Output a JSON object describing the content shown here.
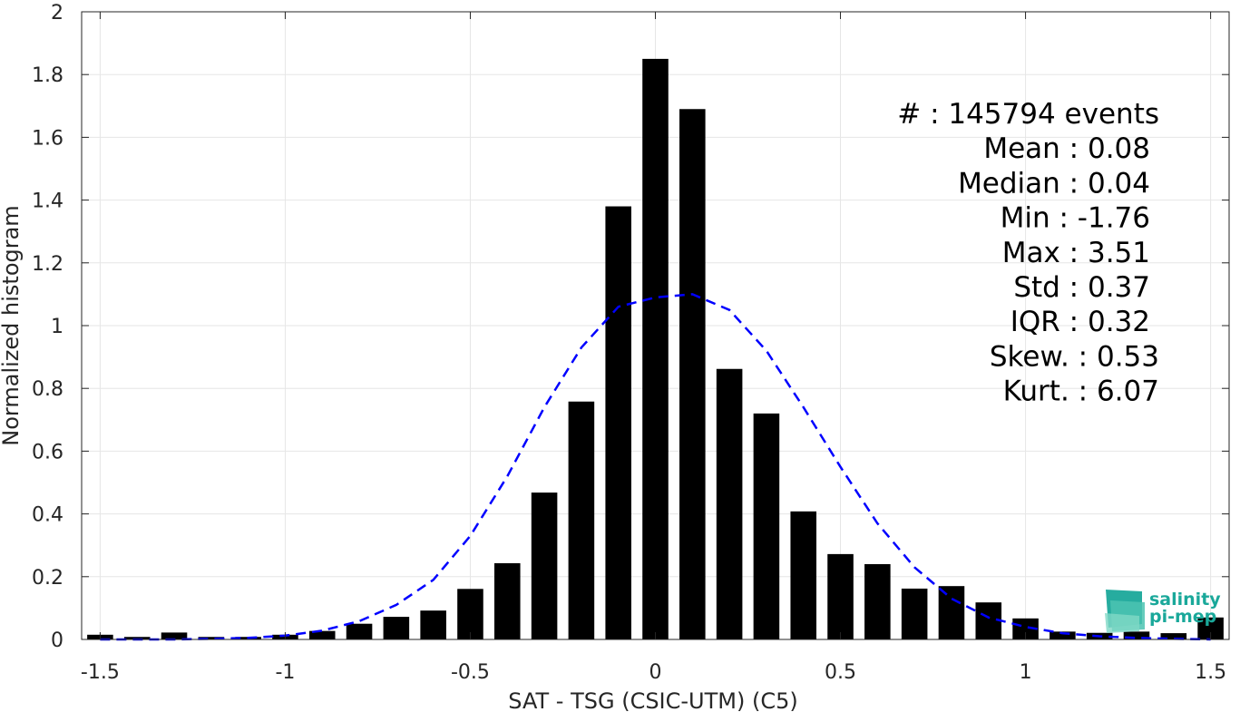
{
  "chart_data": {
    "type": "bar",
    "xlabel": "SAT - TSG (CSIC-UTM) (C5)",
    "ylabel": "Normalized histogram",
    "xlim": [
      -1.55,
      1.55
    ],
    "ylim": [
      0,
      2
    ],
    "grid": true,
    "x_ticks": [
      -1.5,
      -1,
      -0.5,
      0,
      0.5,
      1,
      1.5
    ],
    "x_tick_labels": [
      "-1.5",
      "-1",
      "-0.5",
      "0",
      "0.5",
      "1",
      "1.5"
    ],
    "y_ticks": [
      0,
      0.2,
      0.4,
      0.6,
      0.8,
      1,
      1.2,
      1.4,
      1.6,
      1.8,
      2
    ],
    "y_tick_labels": [
      "0",
      "0.2",
      "0.4",
      "0.6",
      "0.8",
      "1",
      "1.2",
      "1.4",
      "1.6",
      "1.8",
      "2"
    ],
    "bin_width": 0.1,
    "bars": {
      "x": [
        -1.5,
        -1.4,
        -1.3,
        -1.2,
        -1.1,
        -1.0,
        -0.9,
        -0.8,
        -0.7,
        -0.6,
        -0.5,
        -0.4,
        -0.3,
        -0.2,
        -0.1,
        0.0,
        0.1,
        0.2,
        0.3,
        0.4,
        0.5,
        0.6,
        0.7,
        0.8,
        0.9,
        1.0,
        1.1,
        1.2,
        1.3,
        1.4,
        1.5
      ],
      "values": [
        0.015,
        0.008,
        0.022,
        0.008,
        0.008,
        0.015,
        0.027,
        0.05,
        0.072,
        0.092,
        0.161,
        0.243,
        0.468,
        0.758,
        1.38,
        1.85,
        1.69,
        0.862,
        0.72,
        0.408,
        0.272,
        0.24,
        0.162,
        0.17,
        0.118,
        0.067,
        0.025,
        0.021,
        0.025,
        0.02,
        0.07
      ],
      "color": "#000000"
    },
    "fit_curve": {
      "style": "dashed",
      "color": "#0000ff",
      "x": [
        -1.5,
        -1.4,
        -1.3,
        -1.2,
        -1.1,
        -1.0,
        -0.9,
        -0.8,
        -0.7,
        -0.6,
        -0.5,
        -0.4,
        -0.3,
        -0.2,
        -0.1,
        0.0,
        0.1,
        0.2,
        0.3,
        0.4,
        0.5,
        0.6,
        0.7,
        0.8,
        0.9,
        1.0,
        1.1,
        1.2,
        1.3,
        1.4,
        1.5
      ],
      "y": [
        0.0,
        0.0,
        0.0,
        0.002,
        0.005,
        0.012,
        0.028,
        0.058,
        0.11,
        0.19,
        0.33,
        0.52,
        0.74,
        0.93,
        1.06,
        1.09,
        1.1,
        1.05,
        0.92,
        0.74,
        0.55,
        0.37,
        0.23,
        0.13,
        0.07,
        0.04,
        0.02,
        0.01,
        0.005,
        0.002,
        0.0
      ]
    },
    "annotations": [
      {
        "key": "#",
        "sep": " : ",
        "value": "145794 events"
      },
      {
        "key": "Mean",
        "sep": " : ",
        "value": "0.08"
      },
      {
        "key": "Median",
        "sep": " : ",
        "value": "0.04"
      },
      {
        "key": "Min",
        "sep": " : ",
        "value": "-1.76"
      },
      {
        "key": "Max",
        "sep": " : ",
        "value": "3.51"
      },
      {
        "key": "Std",
        "sep": " : ",
        "value": "0.37"
      },
      {
        "key": "IQR",
        "sep": " : ",
        "value": "0.32"
      },
      {
        "key": "Skew.",
        "sep": " : ",
        "value": "0.53"
      },
      {
        "key": "Kurt.",
        "sep": " : ",
        "value": "6.07"
      }
    ]
  },
  "logo": {
    "line1": "salinity",
    "line2": "pi-mep",
    "color": "#1aa89a"
  },
  "colors": {
    "grid": "#e6e6e6",
    "axis": "#262626"
  }
}
